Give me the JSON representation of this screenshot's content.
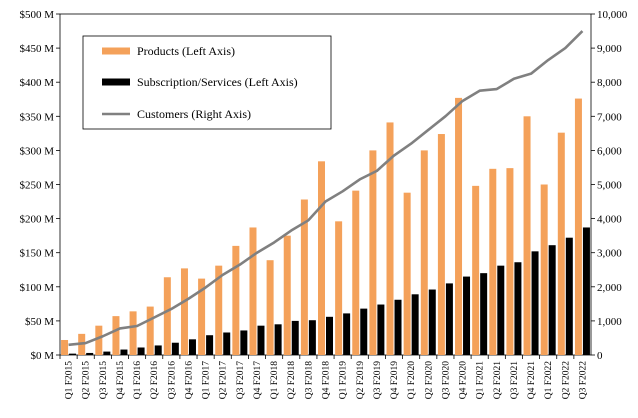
{
  "chart_data": {
    "type": "bar",
    "categories": [
      "Q1 F2015",
      "Q2 F2015",
      "Q3 F2015",
      "Q4 F2015",
      "Q1 F2016",
      "Q2 F2016",
      "Q3 F2016",
      "Q4 F2016",
      "Q1 F2017",
      "Q2 F2017",
      "Q3 F2017",
      "Q4 F2017",
      "Q1 F2018",
      "Q2 F2018",
      "Q3 F2018",
      "Q4 F2018",
      "Q1 F2019",
      "Q2 F2019",
      "Q3 F2019",
      "Q4 F2019",
      "Q1 F2020",
      "Q2 F2020",
      "Q3 F2020",
      "Q4 F2020",
      "Q1 F2021",
      "Q2 F2021",
      "Q3 F2021",
      "Q4 F2021",
      "Q1 F2022",
      "Q2 F2022",
      "Q3 F2022"
    ],
    "series": [
      {
        "name": "Products (Left Axis)",
        "kind": "bar",
        "axis": "left",
        "color": "#f4a15a",
        "values": [
          22,
          31,
          43,
          57,
          64,
          71,
          114,
          127,
          112,
          131,
          160,
          187,
          139,
          175,
          228,
          284,
          196,
          241,
          300,
          341,
          238,
          300,
          324,
          377,
          248,
          273,
          274,
          350,
          250,
          326,
          376
        ]
      },
      {
        "name": "Subscription/Services (Left Axis)",
        "kind": "bar",
        "axis": "left",
        "color": "#000000",
        "values": [
          2,
          3,
          5,
          8,
          11,
          14,
          18,
          23,
          29,
          33,
          36,
          43,
          45,
          50,
          51,
          56,
          61,
          68,
          74,
          81,
          89,
          96,
          105,
          115,
          120,
          131,
          136,
          152,
          161,
          172,
          187
        ]
      },
      {
        "name": "Customers (Right Axis)",
        "kind": "line",
        "axis": "right",
        "color": "#808080",
        "values": [
          300,
          350,
          550,
          780,
          850,
          1100,
          1350,
          1650,
          1980,
          2350,
          2650,
          3000,
          3300,
          3650,
          3950,
          4500,
          4800,
          5150,
          5400,
          5850,
          6200,
          6600,
          7000,
          7450,
          7750,
          7800,
          8100,
          8250,
          8650,
          9000,
          9500
        ]
      }
    ],
    "y_left": {
      "min": 0,
      "max": 500,
      "ticks": [
        "$0 M",
        "$50 M",
        "$100 M",
        "$150 M",
        "$200 M",
        "$250 M",
        "$300 M",
        "$350 M",
        "$400 M",
        "$450 M",
        "$500 M"
      ]
    },
    "y_right": {
      "min": 0,
      "max": 10000,
      "ticks": [
        "0",
        "1,000",
        "2,000",
        "3,000",
        "4,000",
        "5,000",
        "6,000",
        "7,000",
        "8,000",
        "9,000",
        "10,000"
      ]
    },
    "title": "",
    "xlabel": "",
    "ylabel": "",
    "grid": false,
    "legend_position": "top-left"
  }
}
